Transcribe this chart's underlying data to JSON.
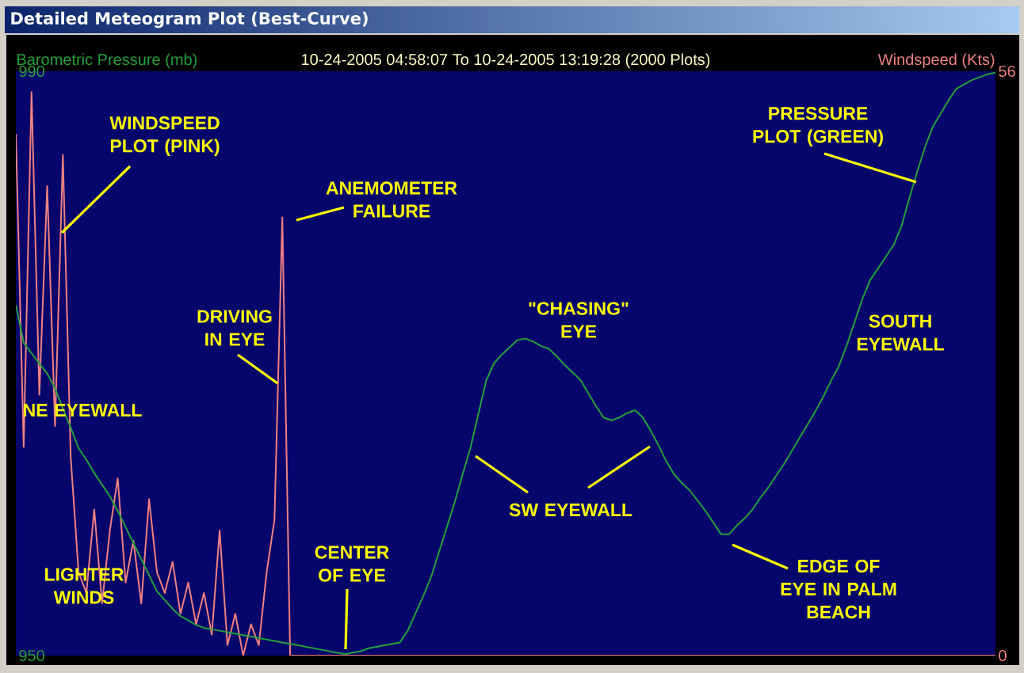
{
  "chart_data": {
    "type": "line",
    "title": "Detailed Meteogram Plot (Best-Curve)",
    "subtitle": "10-24-2005 04:58:07 To 10-24-2005 13:19:28 (2000 Plots)",
    "ylabel": "Barometric Pressure (mb)",
    "y2label": "Windspeed (Kts)",
    "categories": [
      null,
      null,
      null,
      null,
      null,
      null,
      null,
      null,
      null,
      null,
      null,
      null,
      null,
      null,
      null,
      null,
      null,
      null,
      null,
      null,
      null,
      null,
      null,
      null,
      null,
      null,
      null,
      null,
      null,
      null,
      null,
      null,
      null,
      null,
      null,
      null,
      null,
      null,
      null,
      null,
      null,
      null,
      null,
      null,
      null,
      null,
      null,
      null,
      null,
      null,
      null,
      null,
      null,
      null,
      null,
      null,
      null,
      null,
      null,
      null,
      null,
      null,
      null,
      null,
      null,
      null,
      null,
      null,
      null,
      null,
      null,
      null,
      null,
      null,
      null,
      null,
      null,
      null,
      null,
      null,
      null,
      null,
      null,
      null,
      null,
      null,
      null,
      null,
      null,
      null,
      null,
      null,
      null,
      null,
      null,
      null,
      null,
      null,
      null,
      null,
      null,
      null,
      null,
      null,
      null,
      null,
      null,
      null,
      null,
      null,
      null,
      null,
      null,
      null,
      null,
      null,
      null,
      null,
      null,
      null,
      null,
      null,
      null,
      null,
      null,
      null
    ],
    "series": [
      {
        "color": "#f08080",
        "axis": "y2",
        "values": [
          50,
          20,
          54,
          25,
          45,
          22,
          48,
          19,
          8,
          6,
          14,
          5,
          12,
          17,
          7,
          11,
          5,
          15,
          8,
          6,
          9,
          4,
          7,
          3,
          6,
          2,
          12,
          1,
          4,
          0,
          3,
          1,
          8,
          13,
          42,
          0,
          0,
          0,
          0,
          0,
          0,
          0,
          0,
          0,
          0,
          0,
          0,
          0,
          0,
          0,
          0,
          0,
          0,
          0,
          0,
          0,
          0,
          0,
          0,
          0,
          0,
          0,
          0,
          0,
          0,
          0,
          0,
          0,
          0,
          0,
          0,
          0,
          0,
          0,
          0,
          0,
          0,
          0,
          0,
          0,
          0,
          0,
          0,
          0,
          0,
          0,
          0,
          0,
          0,
          0,
          0,
          0,
          0,
          0,
          0,
          0,
          0,
          0,
          0,
          0,
          0,
          0,
          0,
          0,
          0,
          0,
          0,
          0,
          0,
          0,
          0,
          0,
          0,
          0,
          0,
          0,
          0,
          0,
          0,
          0,
          0,
          0,
          0,
          0,
          0,
          0
        ]
      },
      {
        "color": "#22a03c",
        "axis": "y",
        "values": [
          974.0,
          971.4,
          970.7,
          970.0,
          969.3,
          968.3,
          966.9,
          965.6,
          964.2,
          963.4,
          962.5,
          961.7,
          960.9,
          959.9,
          958.8,
          957.7,
          956.6,
          955.5,
          954.4,
          953.8,
          953.2,
          952.7,
          952.4,
          952.1,
          951.9,
          951.8,
          951.7,
          951.6,
          951.5,
          951.4,
          951.3,
          951.2,
          951.1,
          951.0,
          950.9,
          950.8,
          950.7,
          950.6,
          950.5,
          950.4,
          950.3,
          950.2,
          950.1,
          950.2,
          950.3,
          950.5,
          950.6,
          950.7,
          950.8,
          950.9,
          951.7,
          952.9,
          954.1,
          955.4,
          957.1,
          958.8,
          960.5,
          962.4,
          964.2,
          966.5,
          968.8,
          970.0,
          970.6,
          971.1,
          971.6,
          971.7,
          971.5,
          971.2,
          971.0,
          970.5,
          969.9,
          969.4,
          968.9,
          968.0,
          967.1,
          966.3,
          966.1,
          966.3,
          966.6,
          966.8,
          966.3,
          965.4,
          964.4,
          963.3,
          962.4,
          961.8,
          961.3,
          960.6,
          959.9,
          959.1,
          958.3,
          958.3,
          958.9,
          959.4,
          960.0,
          960.8,
          961.5,
          962.3,
          963.1,
          964.0,
          964.9,
          965.8,
          966.7,
          967.7,
          968.8,
          969.8,
          971.2,
          972.8,
          974.4,
          975.7,
          976.5,
          977.3,
          978.1,
          979.4,
          981.3,
          983.1,
          984.8,
          986.2,
          987.1,
          988.0,
          988.8,
          989.1,
          989.4,
          989.6,
          989.8,
          989.9
        ]
      }
    ],
    "ylim": [
      950,
      990
    ],
    "yticks": [
      950,
      990
    ],
    "y2lim": [
      0,
      56
    ],
    "y2ticks": [
      0,
      56
    ],
    "annotations": [
      "WINDSPEED PLOT (PINK)",
      "ANEMOMETER FAILURE",
      "PRESSURE PLOT (GREEN)",
      "DRIVING IN EYE",
      "\"CHASING\" EYE",
      "SOUTH EYEWALL",
      "NE EYEWALL",
      "SW EYEWALL",
      "CENTER OF EYE",
      "LIGHTER WINDS",
      "EDGE OF EYE IN PALM BEACH"
    ]
  }
}
